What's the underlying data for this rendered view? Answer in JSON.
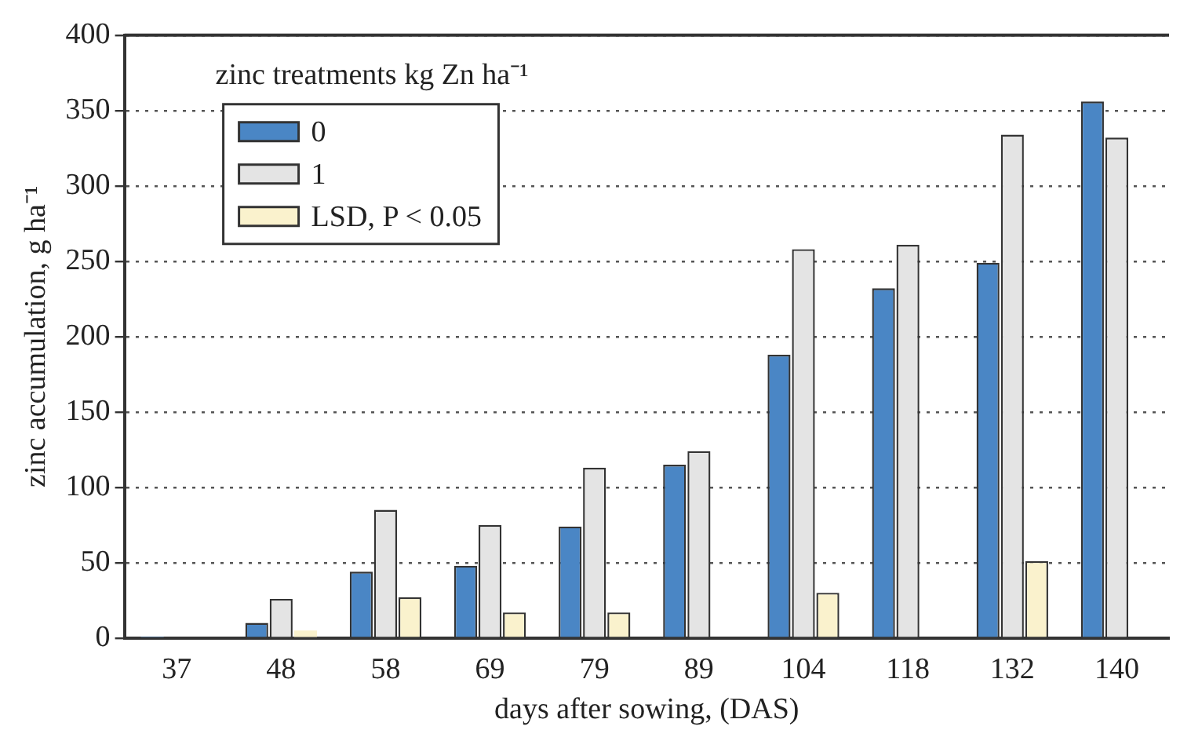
{
  "chart_data": {
    "type": "bar",
    "xlabel": "days after sowing, (DAS)",
    "ylabel": "zinc accumulation, g ha⁻¹",
    "legend_title": "zinc treatments kg Zn ha⁻¹",
    "categories": [
      "37",
      "48",
      "58",
      "69",
      "79",
      "89",
      "104",
      "118",
      "132",
      "140"
    ],
    "series": [
      {
        "name": "0",
        "color": "#4a86c5",
        "values": [
          1,
          10,
          44,
          48,
          74,
          115,
          188,
          232,
          249,
          356
        ]
      },
      {
        "name": "1",
        "color": "#e4e4e4",
        "values": [
          null,
          26,
          85,
          75,
          113,
          124,
          258,
          261,
          334,
          332
        ]
      },
      {
        "name": "LSD, P < 0.05",
        "color": "#faf2cd",
        "values": [
          null,
          5,
          27,
          17,
          17,
          null,
          30,
          null,
          51,
          null
        ]
      }
    ],
    "ylim": [
      0,
      400
    ],
    "yticks": [
      0,
      50,
      100,
      150,
      200,
      250,
      300,
      350,
      400
    ],
    "grid": "y",
    "legend": "top left"
  }
}
